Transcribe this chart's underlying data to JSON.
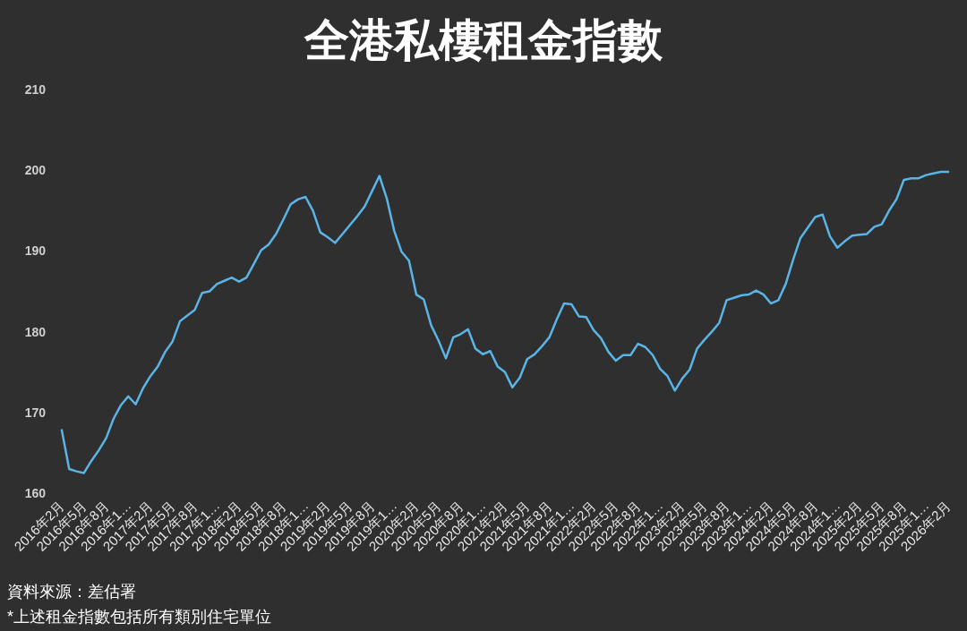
{
  "chart_data": {
    "type": "line",
    "title": "全港私樓租金指數",
    "categories": [
      "2016年2月",
      null,
      null,
      "2016年5月",
      null,
      null,
      "2016年8月",
      null,
      null,
      "2016年1…",
      null,
      null,
      "2017年2月",
      null,
      null,
      "2017年5月",
      null,
      null,
      "2017年8月",
      null,
      null,
      "2017年1…",
      null,
      null,
      "2018年2月",
      null,
      null,
      "2018年5月",
      null,
      null,
      "2018年8月",
      null,
      null,
      "2018年1…",
      null,
      null,
      "2019年2月",
      null,
      null,
      "2019年5月",
      null,
      null,
      "2019年8月",
      null,
      null,
      "2019年1…",
      null,
      null,
      "2020年2月",
      null,
      null,
      "2020年5月",
      null,
      null,
      "2020年8月",
      null,
      null,
      "2020年1…",
      null,
      null,
      "2021年2月",
      null,
      null,
      "2021年5月",
      null,
      null,
      "2021年8月",
      null,
      null,
      "2021年1…",
      null,
      null,
      "2022年2月",
      null,
      null,
      "2022年5月",
      null,
      null,
      "2022年8月",
      null,
      null,
      "2022年1…",
      null,
      null,
      "2023年2月",
      null,
      null,
      "2023年5月",
      null,
      null,
      "2023年8月",
      null,
      null,
      "2023年1…",
      null,
      null,
      "2024年2月",
      null,
      null,
      "2024年5月",
      null,
      null,
      "2024年8月",
      null,
      null,
      "2024年1…",
      null,
      null,
      "2025年2月",
      null,
      null,
      "2025年5月",
      null,
      null,
      "2025年8月",
      null,
      null,
      "2025年1…",
      null,
      null,
      "2026年2月"
    ],
    "series": [
      {
        "color": "#5ab4e5",
        "values": [
          167.8,
          163.0,
          162.7,
          162.5,
          164.0,
          165.3,
          166.8,
          169.2,
          170.9,
          172.0,
          171.0,
          173.0,
          174.5,
          175.7,
          177.5,
          178.8,
          181.3,
          182.0,
          182.7,
          184.8,
          185.0,
          185.9,
          186.3,
          186.7,
          186.2,
          186.7,
          188.4,
          190.1,
          190.8,
          192.1,
          193.9,
          195.8,
          196.4,
          196.7,
          195.0,
          192.3,
          191.7,
          191.0,
          192.1,
          193.2,
          194.3,
          195.5,
          197.4,
          199.3,
          196.5,
          192.5,
          189.9,
          188.8,
          184.6,
          184.0,
          180.8,
          178.9,
          176.7,
          179.3,
          179.7,
          180.3,
          177.9,
          177.2,
          177.6,
          175.7,
          175.0,
          173.1,
          174.3,
          176.6,
          177.2,
          178.2,
          179.3,
          181.5,
          183.5,
          183.4,
          181.9,
          181.8,
          180.2,
          179.2,
          177.5,
          176.4,
          177.1,
          177.1,
          178.5,
          178.1,
          177.1,
          175.4,
          174.5,
          172.7,
          174.2,
          175.3,
          177.9,
          179.0,
          180.0,
          181.1,
          183.9,
          184.2,
          184.5,
          184.6,
          185.1,
          184.6,
          183.5,
          183.9,
          185.9,
          188.9,
          191.6,
          192.9,
          194.2,
          194.5,
          191.8,
          190.4,
          191.2,
          191.9,
          192.0,
          192.1,
          193.0,
          193.3,
          195.0,
          196.4,
          198.8,
          199.0,
          199.0,
          199.4,
          199.6,
          199.8,
          199.8
        ]
      }
    ],
    "ylim": [
      160,
      210
    ],
    "yticks": [
      160,
      170,
      180,
      190,
      200,
      210
    ],
    "grid": false,
    "annotations": [
      "資料來源：差估署",
      "*上述租金指數包括所有類別住宅單位"
    ]
  }
}
